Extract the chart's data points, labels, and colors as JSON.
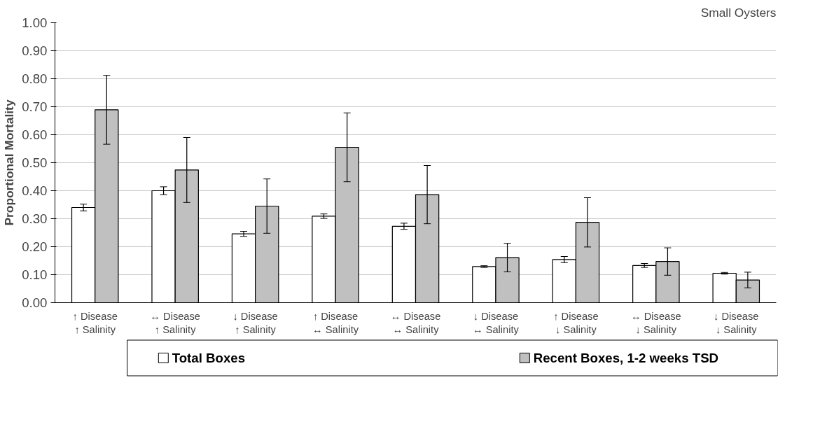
{
  "chart_data": {
    "type": "bar",
    "title": "Small Oysters",
    "ylabel": "Proportional Mortality",
    "categories": [
      "↑ Disease\n↑ Salinity",
      "↔ Disease\n↑ Salinity",
      "↓ Disease\n↑ Salinity",
      "↑ Disease\n↔ Salinity",
      "↔ Disease\n↔ Salinity",
      "↓ Disease\n↔ Salinity",
      "↑ Disease\n↓ Salinity",
      "↔ Disease\n↓ Salinity",
      "↓ Disease\n↓ Salinity"
    ],
    "series": [
      {
        "name": "Total Boxes",
        "color": "#ffffff",
        "values": [
          0.34,
          0.4,
          0.246,
          0.309,
          0.273,
          0.129,
          0.154,
          0.133,
          0.105
        ],
        "errors": [
          0.012,
          0.014,
          0.009,
          0.008,
          0.011,
          0.003,
          0.011,
          0.007,
          0.003
        ]
      },
      {
        "name": "Recent Boxes, 1-2 weeks TSD",
        "color": "#c0c0c0",
        "values": [
          0.689,
          0.474,
          0.345,
          0.555,
          0.386,
          0.161,
          0.287,
          0.147,
          0.081
        ],
        "errors": [
          0.123,
          0.116,
          0.097,
          0.123,
          0.104,
          0.051,
          0.088,
          0.049,
          0.028
        ]
      }
    ],
    "ylim": [
      0,
      1
    ],
    "yticks": [
      {
        "value": 0,
        "label": "0.00"
      },
      {
        "value": 0.1,
        "label": "0.10"
      },
      {
        "value": 0.2,
        "label": "0.20"
      },
      {
        "value": 0.3,
        "label": "0.30"
      },
      {
        "value": 0.4,
        "label": "0.40"
      },
      {
        "value": 0.5,
        "label": "0.50"
      },
      {
        "value": 0.6,
        "label": "0.60"
      },
      {
        "value": 0.7,
        "label": "0.70"
      },
      {
        "value": 0.8,
        "label": "0.80"
      },
      {
        "value": 0.9,
        "label": "0.90"
      },
      {
        "value": 1,
        "label": "1.00"
      }
    ],
    "grid": "y",
    "legend": "bottom"
  }
}
